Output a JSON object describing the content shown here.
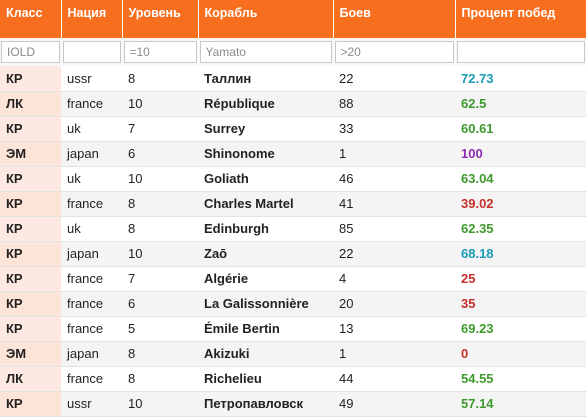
{
  "headers": [
    "Класс",
    "Нация",
    "Уровень",
    "Корабль",
    "Боев",
    "Процент побед"
  ],
  "filters": [
    {
      "value": "",
      "placeholder": "IOLD"
    },
    {
      "value": "",
      "placeholder": ""
    },
    {
      "value": "",
      "placeholder": "=10"
    },
    {
      "value": "",
      "placeholder": "Yamato"
    },
    {
      "value": "",
      "placeholder": ">20"
    },
    {
      "value": "",
      "placeholder": ""
    }
  ],
  "colors": {
    "header_bg": "#f76f1e",
    "teal": "#1b9bb5",
    "green": "#3f9a2e",
    "purple": "#8e2bb0",
    "red": "#c4302b"
  },
  "rows": [
    {
      "cls": "КР",
      "nation": "ussr",
      "tier": "8",
      "ship": "Таллин",
      "battles": "22",
      "winrate": "72.73",
      "color": "#1b9bb5"
    },
    {
      "cls": "ЛК",
      "nation": "france",
      "tier": "10",
      "ship": "République",
      "battles": "88",
      "winrate": "62.5",
      "color": "#3f9a2e"
    },
    {
      "cls": "КР",
      "nation": "uk",
      "tier": "7",
      "ship": "Surrey",
      "battles": "33",
      "winrate": "60.61",
      "color": "#3f9a2e"
    },
    {
      "cls": "ЭМ",
      "nation": "japan",
      "tier": "6",
      "ship": "Shinonome",
      "battles": "1",
      "winrate": "100",
      "color": "#8e2bb0"
    },
    {
      "cls": "КР",
      "nation": "uk",
      "tier": "10",
      "ship": "Goliath",
      "battles": "46",
      "winrate": "63.04",
      "color": "#3f9a2e"
    },
    {
      "cls": "КР",
      "nation": "france",
      "tier": "8",
      "ship": "Charles Martel",
      "battles": "41",
      "winrate": "39.02",
      "color": "#c4302b"
    },
    {
      "cls": "КР",
      "nation": "uk",
      "tier": "8",
      "ship": "Edinburgh",
      "battles": "85",
      "winrate": "62.35",
      "color": "#3f9a2e"
    },
    {
      "cls": "КР",
      "nation": "japan",
      "tier": "10",
      "ship": "Zaō",
      "battles": "22",
      "winrate": "68.18",
      "color": "#1b9bb5"
    },
    {
      "cls": "КР",
      "nation": "france",
      "tier": "7",
      "ship": "Algérie",
      "battles": "4",
      "winrate": "25",
      "color": "#c4302b"
    },
    {
      "cls": "КР",
      "nation": "france",
      "tier": "6",
      "ship": "La Galissonnière",
      "battles": "20",
      "winrate": "35",
      "color": "#c4302b"
    },
    {
      "cls": "КР",
      "nation": "france",
      "tier": "5",
      "ship": "Émile Bertin",
      "battles": "13",
      "winrate": "69.23",
      "color": "#3f9a2e"
    },
    {
      "cls": "ЭМ",
      "nation": "japan",
      "tier": "8",
      "ship": "Akizuki",
      "battles": "1",
      "winrate": "0",
      "color": "#c4302b"
    },
    {
      "cls": "ЛК",
      "nation": "france",
      "tier": "8",
      "ship": "Richelieu",
      "battles": "44",
      "winrate": "54.55",
      "color": "#3f9a2e"
    },
    {
      "cls": "КР",
      "nation": "ussr",
      "tier": "10",
      "ship": "Петропавловск",
      "battles": "49",
      "winrate": "57.14",
      "color": "#3f9a2e"
    }
  ]
}
